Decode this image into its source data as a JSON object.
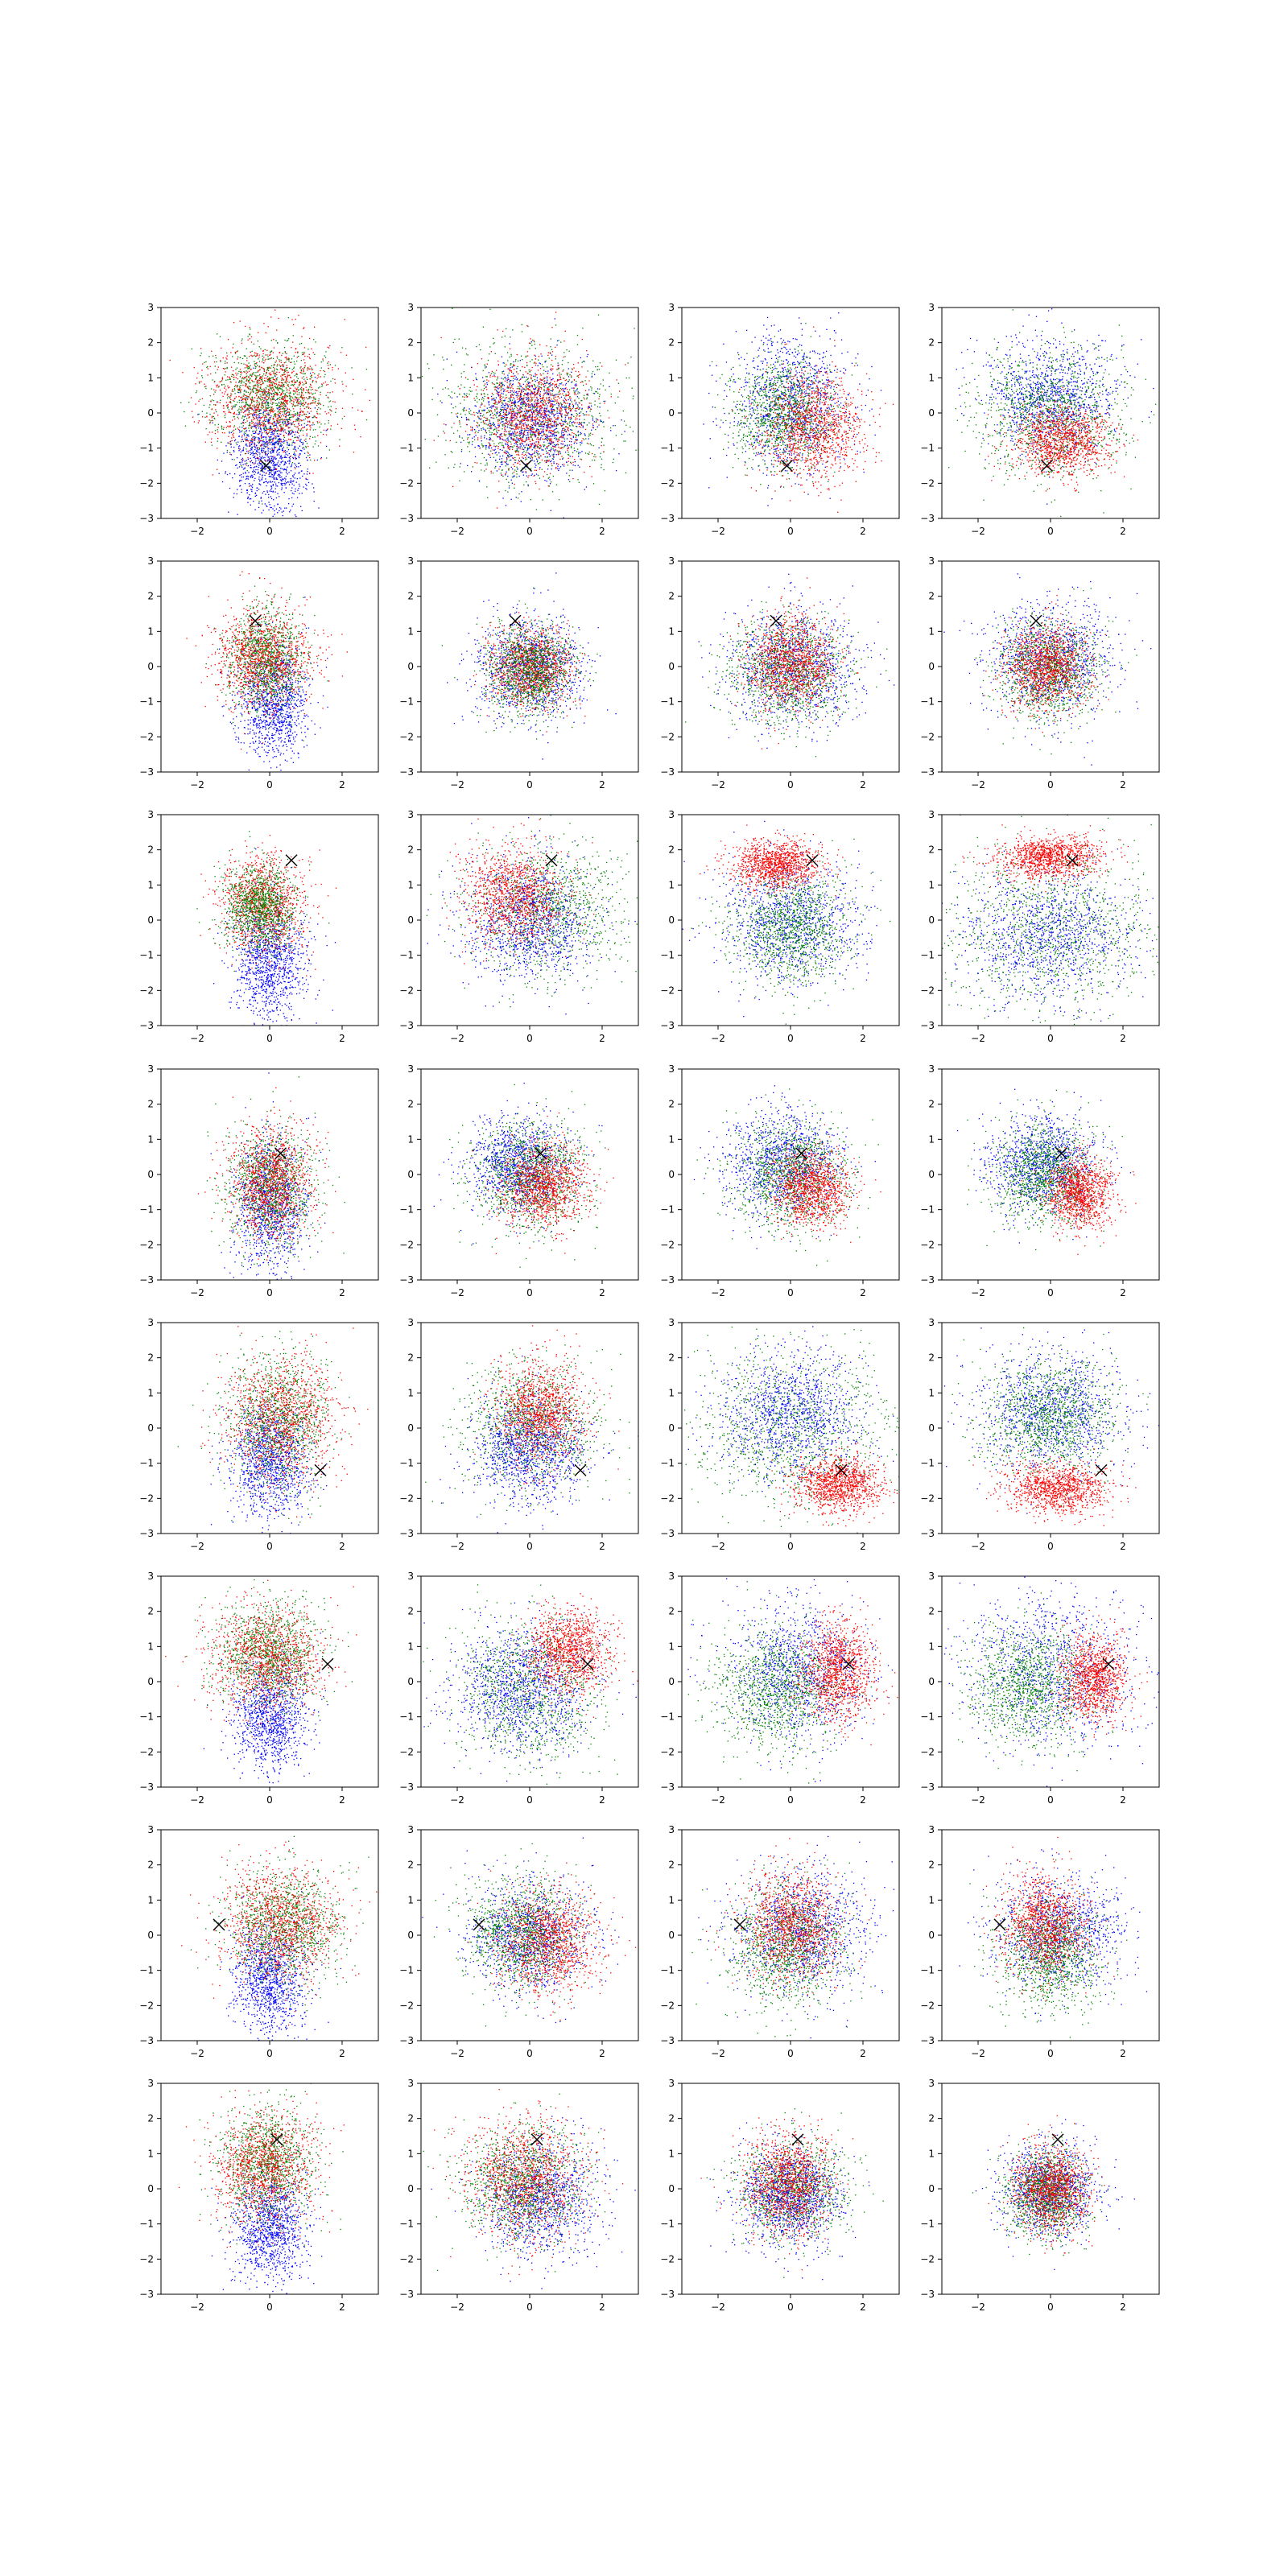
{
  "chart_data": {
    "type": "scatter",
    "layout": {
      "rows": 8,
      "cols": 4
    },
    "xlim": [
      -3,
      3
    ],
    "ylim": [
      -3,
      3
    ],
    "xticks": [
      -2,
      0,
      2
    ],
    "yticks": [
      -3,
      -2,
      -1,
      0,
      1,
      2,
      3
    ],
    "grid": false,
    "legend": "none",
    "marker_symbol": "×",
    "colors": {
      "blue": "#0000ff",
      "green": "#008000",
      "red": "#ff0000",
      "marker": "#000000"
    },
    "points_per_cloud": 1100,
    "panels": [
      {
        "row": 0,
        "col": 0,
        "marker": [
          -0.1,
          -1.5
        ],
        "clusters": [
          {
            "color": "blue",
            "mx": 0,
            "my": -1.2,
            "sx": 0.5,
            "sy": 0.8
          },
          {
            "color": "green",
            "mx": 0,
            "my": 0.5,
            "sx": 0.8,
            "sy": 0.75
          },
          {
            "color": "red",
            "mx": 0,
            "my": 0.4,
            "sx": 0.9,
            "sy": 0.8
          }
        ]
      },
      {
        "row": 0,
        "col": 1,
        "marker": [
          -0.1,
          -1.5
        ],
        "clusters": [
          {
            "color": "green",
            "mx": 0,
            "my": 0,
            "sx": 1.2,
            "sy": 1.0
          },
          {
            "color": "blue",
            "mx": 0,
            "my": -0.2,
            "sx": 0.85,
            "sy": 0.8
          },
          {
            "color": "red",
            "mx": 0,
            "my": 0,
            "sx": 0.8,
            "sy": 0.8
          }
        ]
      },
      {
        "row": 0,
        "col": 2,
        "marker": [
          -0.1,
          -1.5
        ],
        "clusters": [
          {
            "color": "blue",
            "mx": 0,
            "my": 0.3,
            "sx": 0.8,
            "sy": 0.95
          },
          {
            "color": "green",
            "mx": -0.2,
            "my": 0,
            "sx": 0.7,
            "sy": 0.75
          },
          {
            "color": "red",
            "mx": 0.6,
            "my": -0.4,
            "sx": 0.7,
            "sy": 0.75
          }
        ]
      },
      {
        "row": 0,
        "col": 3,
        "marker": [
          -0.1,
          -1.5
        ],
        "clusters": [
          {
            "color": "blue",
            "mx": 0,
            "my": 0.5,
            "sx": 0.9,
            "sy": 0.8
          },
          {
            "color": "green",
            "mx": 0,
            "my": 0,
            "sx": 1.0,
            "sy": 0.9
          },
          {
            "color": "red",
            "mx": 0.3,
            "my": -0.8,
            "sx": 0.7,
            "sy": 0.5
          }
        ]
      },
      {
        "row": 1,
        "col": 0,
        "marker": [
          -0.4,
          1.3
        ],
        "clusters": [
          {
            "color": "blue",
            "mx": 0.1,
            "my": -1.0,
            "sx": 0.5,
            "sy": 0.8
          },
          {
            "color": "green",
            "mx": -0.1,
            "my": 0.2,
            "sx": 0.5,
            "sy": 0.7
          },
          {
            "color": "red",
            "mx": -0.2,
            "my": 0.3,
            "sx": 0.7,
            "sy": 0.75
          }
        ]
      },
      {
        "row": 1,
        "col": 1,
        "marker": [
          -0.4,
          1.3
        ],
        "clusters": [
          {
            "color": "blue",
            "mx": 0,
            "my": 0,
            "sx": 0.75,
            "sy": 0.7
          },
          {
            "color": "red",
            "mx": 0,
            "my": 0,
            "sx": 0.55,
            "sy": 0.55
          },
          {
            "color": "green",
            "mx": 0,
            "my": -0.1,
            "sx": 0.6,
            "sy": 0.65
          }
        ]
      },
      {
        "row": 1,
        "col": 2,
        "marker": [
          -0.4,
          1.3
        ],
        "clusters": [
          {
            "color": "blue",
            "mx": 0.1,
            "my": 0,
            "sx": 0.9,
            "sy": 0.8
          },
          {
            "color": "green",
            "mx": -0.1,
            "my": -0.1,
            "sx": 0.8,
            "sy": 0.75
          },
          {
            "color": "red",
            "mx": 0,
            "my": 0.1,
            "sx": 0.6,
            "sy": 0.65
          }
        ]
      },
      {
        "row": 1,
        "col": 3,
        "marker": [
          -0.4,
          1.3
        ],
        "clusters": [
          {
            "color": "blue",
            "mx": 0,
            "my": 0.2,
            "sx": 0.85,
            "sy": 0.8
          },
          {
            "color": "green",
            "mx": -0.1,
            "my": -0.1,
            "sx": 0.7,
            "sy": 0.7
          },
          {
            "color": "red",
            "mx": -0.1,
            "my": 0,
            "sx": 0.55,
            "sy": 0.6
          }
        ]
      },
      {
        "row": 2,
        "col": 0,
        "marker": [
          0.6,
          1.7
        ],
        "clusters": [
          {
            "color": "blue",
            "mx": 0,
            "my": -1.2,
            "sx": 0.5,
            "sy": 0.8
          },
          {
            "color": "red",
            "mx": -0.2,
            "my": 0.5,
            "sx": 0.6,
            "sy": 0.7
          },
          {
            "color": "green",
            "mx": -0.3,
            "my": 0.4,
            "sx": 0.5,
            "sy": 0.6
          }
        ]
      },
      {
        "row": 2,
        "col": 1,
        "marker": [
          0.6,
          1.7
        ],
        "clusters": [
          {
            "color": "green",
            "mx": 0.5,
            "my": 0.3,
            "sx": 1.0,
            "sy": 0.9
          },
          {
            "color": "blue",
            "mx": 0,
            "my": 0,
            "sx": 0.9,
            "sy": 0.85
          },
          {
            "color": "red",
            "mx": -0.4,
            "my": 0.7,
            "sx": 0.7,
            "sy": 0.7
          }
        ]
      },
      {
        "row": 2,
        "col": 2,
        "marker": [
          0.6,
          1.7
        ],
        "clusters": [
          {
            "color": "blue",
            "mx": 0,
            "my": 0,
            "sx": 1.0,
            "sy": 0.9
          },
          {
            "color": "green",
            "mx": 0,
            "my": -0.2,
            "sx": 0.85,
            "sy": 0.8
          },
          {
            "color": "red",
            "mx": -0.4,
            "my": 1.6,
            "sx": 0.6,
            "sy": 0.35
          }
        ]
      },
      {
        "row": 2,
        "col": 3,
        "marker": [
          0.6,
          1.7
        ],
        "clusters": [
          {
            "color": "green",
            "mx": 0,
            "my": -0.3,
            "sx": 1.4,
            "sy": 1.2
          },
          {
            "color": "blue",
            "mx": 0,
            "my": -0.4,
            "sx": 1.2,
            "sy": 1.0
          },
          {
            "color": "red",
            "mx": 0,
            "my": 1.8,
            "sx": 0.7,
            "sy": 0.3
          }
        ]
      },
      {
        "row": 3,
        "col": 0,
        "marker": [
          0.3,
          0.6
        ],
        "clusters": [
          {
            "color": "blue",
            "mx": 0,
            "my": -0.8,
            "sx": 0.5,
            "sy": 0.9
          },
          {
            "color": "green",
            "mx": 0,
            "my": -0.3,
            "sx": 0.6,
            "sy": 0.8
          },
          {
            "color": "red",
            "mx": 0,
            "my": -0.2,
            "sx": 0.6,
            "sy": 0.8
          }
        ]
      },
      {
        "row": 3,
        "col": 1,
        "marker": [
          0.3,
          0.6
        ],
        "clusters": [
          {
            "color": "blue",
            "mx": -0.3,
            "my": 0.3,
            "sx": 0.7,
            "sy": 0.65
          },
          {
            "color": "green",
            "mx": 0,
            "my": 0,
            "sx": 0.75,
            "sy": 0.75
          },
          {
            "color": "red",
            "mx": 0.4,
            "my": -0.3,
            "sx": 0.6,
            "sy": 0.6
          }
        ]
      },
      {
        "row": 3,
        "col": 2,
        "marker": [
          0.3,
          0.6
        ],
        "clusters": [
          {
            "color": "blue",
            "mx": -0.2,
            "my": 0.3,
            "sx": 0.8,
            "sy": 0.75
          },
          {
            "color": "green",
            "mx": 0,
            "my": 0,
            "sx": 0.8,
            "sy": 0.75
          },
          {
            "color": "red",
            "mx": 0.6,
            "my": -0.4,
            "sx": 0.55,
            "sy": 0.55
          }
        ]
      },
      {
        "row": 3,
        "col": 3,
        "marker": [
          0.3,
          0.6
        ],
        "clusters": [
          {
            "color": "blue",
            "mx": -0.2,
            "my": 0.3,
            "sx": 0.75,
            "sy": 0.7
          },
          {
            "color": "green",
            "mx": -0.2,
            "my": 0,
            "sx": 0.7,
            "sy": 0.7
          },
          {
            "color": "red",
            "mx": 0.8,
            "my": -0.5,
            "sx": 0.45,
            "sy": 0.5
          }
        ]
      },
      {
        "row": 4,
        "col": 0,
        "marker": [
          1.4,
          -1.2
        ],
        "clusters": [
          {
            "color": "blue",
            "mx": 0,
            "my": -1.0,
            "sx": 0.55,
            "sy": 0.8
          },
          {
            "color": "green",
            "mx": 0.2,
            "my": 0.2,
            "sx": 0.7,
            "sy": 0.9
          },
          {
            "color": "red",
            "mx": 0.3,
            "my": 0.3,
            "sx": 0.8,
            "sy": 0.9
          }
        ]
      },
      {
        "row": 4,
        "col": 1,
        "marker": [
          1.4,
          -1.2
        ],
        "clusters": [
          {
            "color": "green",
            "mx": 0,
            "my": 0,
            "sx": 0.9,
            "sy": 0.9
          },
          {
            "color": "blue",
            "mx": 0,
            "my": -0.6,
            "sx": 0.75,
            "sy": 0.75
          },
          {
            "color": "red",
            "mx": 0.3,
            "my": 0.5,
            "sx": 0.6,
            "sy": 0.7
          }
        ]
      },
      {
        "row": 4,
        "col": 2,
        "marker": [
          1.4,
          -1.2
        ],
        "clusters": [
          {
            "color": "green",
            "mx": 0,
            "my": 0,
            "sx": 1.3,
            "sy": 1.2
          },
          {
            "color": "blue",
            "mx": 0,
            "my": 0.4,
            "sx": 1.0,
            "sy": 0.9
          },
          {
            "color": "red",
            "mx": 1.3,
            "my": -1.6,
            "sx": 0.6,
            "sy": 0.4
          }
        ]
      },
      {
        "row": 4,
        "col": 3,
        "marker": [
          1.4,
          -1.2
        ],
        "clusters": [
          {
            "color": "blue",
            "mx": 0,
            "my": 0.5,
            "sx": 1.0,
            "sy": 0.9
          },
          {
            "color": "green",
            "mx": 0,
            "my": 0.3,
            "sx": 0.9,
            "sy": 0.8
          },
          {
            "color": "red",
            "mx": 0.2,
            "my": -1.7,
            "sx": 0.7,
            "sy": 0.35
          }
        ]
      },
      {
        "row": 5,
        "col": 0,
        "marker": [
          1.6,
          0.5
        ],
        "clusters": [
          {
            "color": "blue",
            "mx": 0,
            "my": -1.0,
            "sx": 0.5,
            "sy": 0.8
          },
          {
            "color": "green",
            "mx": 0,
            "my": 0.8,
            "sx": 0.7,
            "sy": 0.7
          },
          {
            "color": "red",
            "mx": -0.1,
            "my": 0.7,
            "sx": 0.8,
            "sy": 0.75
          }
        ]
      },
      {
        "row": 5,
        "col": 1,
        "marker": [
          1.6,
          0.5
        ],
        "clusters": [
          {
            "color": "green",
            "mx": 0,
            "my": -0.2,
            "sx": 1.0,
            "sy": 1.0
          },
          {
            "color": "blue",
            "mx": -0.2,
            "my": -0.2,
            "sx": 1.0,
            "sy": 0.9
          },
          {
            "color": "red",
            "mx": 1.1,
            "my": 0.9,
            "sx": 0.6,
            "sy": 0.6
          }
        ]
      },
      {
        "row": 5,
        "col": 2,
        "marker": [
          1.6,
          0.5
        ],
        "clusters": [
          {
            "color": "blue",
            "mx": 0.2,
            "my": 0.3,
            "sx": 1.0,
            "sy": 1.0
          },
          {
            "color": "green",
            "mx": -0.4,
            "my": -0.2,
            "sx": 0.9,
            "sy": 0.9
          },
          {
            "color": "red",
            "mx": 1.3,
            "my": 0.3,
            "sx": 0.5,
            "sy": 0.7
          }
        ]
      },
      {
        "row": 5,
        "col": 3,
        "marker": [
          1.6,
          0.5
        ],
        "clusters": [
          {
            "color": "blue",
            "mx": 0,
            "my": 0.3,
            "sx": 1.2,
            "sy": 1.1
          },
          {
            "color": "green",
            "mx": -0.6,
            "my": -0.1,
            "sx": 0.8,
            "sy": 0.8
          },
          {
            "color": "red",
            "mx": 1.2,
            "my": 0.1,
            "sx": 0.45,
            "sy": 0.6
          }
        ]
      },
      {
        "row": 6,
        "col": 0,
        "marker": [
          -1.4,
          0.3
        ],
        "clusters": [
          {
            "color": "blue",
            "mx": 0,
            "my": -1.2,
            "sx": 0.5,
            "sy": 0.8
          },
          {
            "color": "green",
            "mx": 0.4,
            "my": 0.3,
            "sx": 0.75,
            "sy": 0.8
          },
          {
            "color": "red",
            "mx": 0.3,
            "my": 0.3,
            "sx": 0.8,
            "sy": 0.8
          }
        ]
      },
      {
        "row": 6,
        "col": 1,
        "marker": [
          -1.4,
          0.3
        ],
        "clusters": [
          {
            "color": "blue",
            "mx": 0,
            "my": 0,
            "sx": 0.8,
            "sy": 0.8
          },
          {
            "color": "green",
            "mx": -0.2,
            "my": 0.1,
            "sx": 0.8,
            "sy": 0.8
          },
          {
            "color": "red",
            "mx": 0.5,
            "my": -0.2,
            "sx": 0.7,
            "sy": 0.7
          }
        ]
      },
      {
        "row": 6,
        "col": 2,
        "marker": [
          -1.4,
          0.3
        ],
        "clusters": [
          {
            "color": "blue",
            "mx": 0.3,
            "my": 0.1,
            "sx": 0.9,
            "sy": 0.85
          },
          {
            "color": "green",
            "mx": -0.1,
            "my": -0.3,
            "sx": 0.8,
            "sy": 0.85
          },
          {
            "color": "red",
            "mx": 0,
            "my": 0.3,
            "sx": 0.65,
            "sy": 0.75
          }
        ]
      },
      {
        "row": 6,
        "col": 3,
        "marker": [
          -1.4,
          0.3
        ],
        "clusters": [
          {
            "color": "blue",
            "mx": 0.3,
            "my": 0.1,
            "sx": 0.9,
            "sy": 0.8
          },
          {
            "color": "green",
            "mx": 0,
            "my": -0.5,
            "sx": 0.7,
            "sy": 0.75
          },
          {
            "color": "red",
            "mx": -0.2,
            "my": 0.3,
            "sx": 0.55,
            "sy": 0.7
          }
        ]
      },
      {
        "row": 7,
        "col": 0,
        "marker": [
          0.2,
          1.4
        ],
        "clusters": [
          {
            "color": "blue",
            "mx": 0,
            "my": -1.1,
            "sx": 0.5,
            "sy": 0.8
          },
          {
            "color": "green",
            "mx": -0.1,
            "my": 0.7,
            "sx": 0.65,
            "sy": 0.8
          },
          {
            "color": "red",
            "mx": -0.1,
            "my": 0.6,
            "sx": 0.7,
            "sy": 0.8
          }
        ]
      },
      {
        "row": 7,
        "col": 1,
        "marker": [
          0.2,
          1.4
        ],
        "clusters": [
          {
            "color": "blue",
            "mx": 0.3,
            "my": -0.3,
            "sx": 0.8,
            "sy": 0.8
          },
          {
            "color": "green",
            "mx": -0.2,
            "my": 0.1,
            "sx": 0.8,
            "sy": 0.8
          },
          {
            "color": "red",
            "mx": -0.1,
            "my": 0.3,
            "sx": 0.8,
            "sy": 0.85
          }
        ]
      },
      {
        "row": 7,
        "col": 2,
        "marker": [
          0.2,
          1.4
        ],
        "clusters": [
          {
            "color": "green",
            "mx": 0,
            "my": 0,
            "sx": 0.75,
            "sy": 0.7
          },
          {
            "color": "blue",
            "mx": 0,
            "my": -0.2,
            "sx": 0.7,
            "sy": 0.7
          },
          {
            "color": "red",
            "mx": -0.1,
            "my": 0.2,
            "sx": 0.6,
            "sy": 0.7
          }
        ]
      },
      {
        "row": 7,
        "col": 3,
        "marker": [
          0.2,
          1.4
        ],
        "clusters": [
          {
            "color": "blue",
            "mx": 0,
            "my": 0,
            "sx": 0.65,
            "sy": 0.65
          },
          {
            "color": "green",
            "mx": -0.1,
            "my": -0.1,
            "sx": 0.55,
            "sy": 0.6
          },
          {
            "color": "red",
            "mx": 0,
            "my": 0,
            "sx": 0.5,
            "sy": 0.6
          }
        ]
      }
    ]
  }
}
